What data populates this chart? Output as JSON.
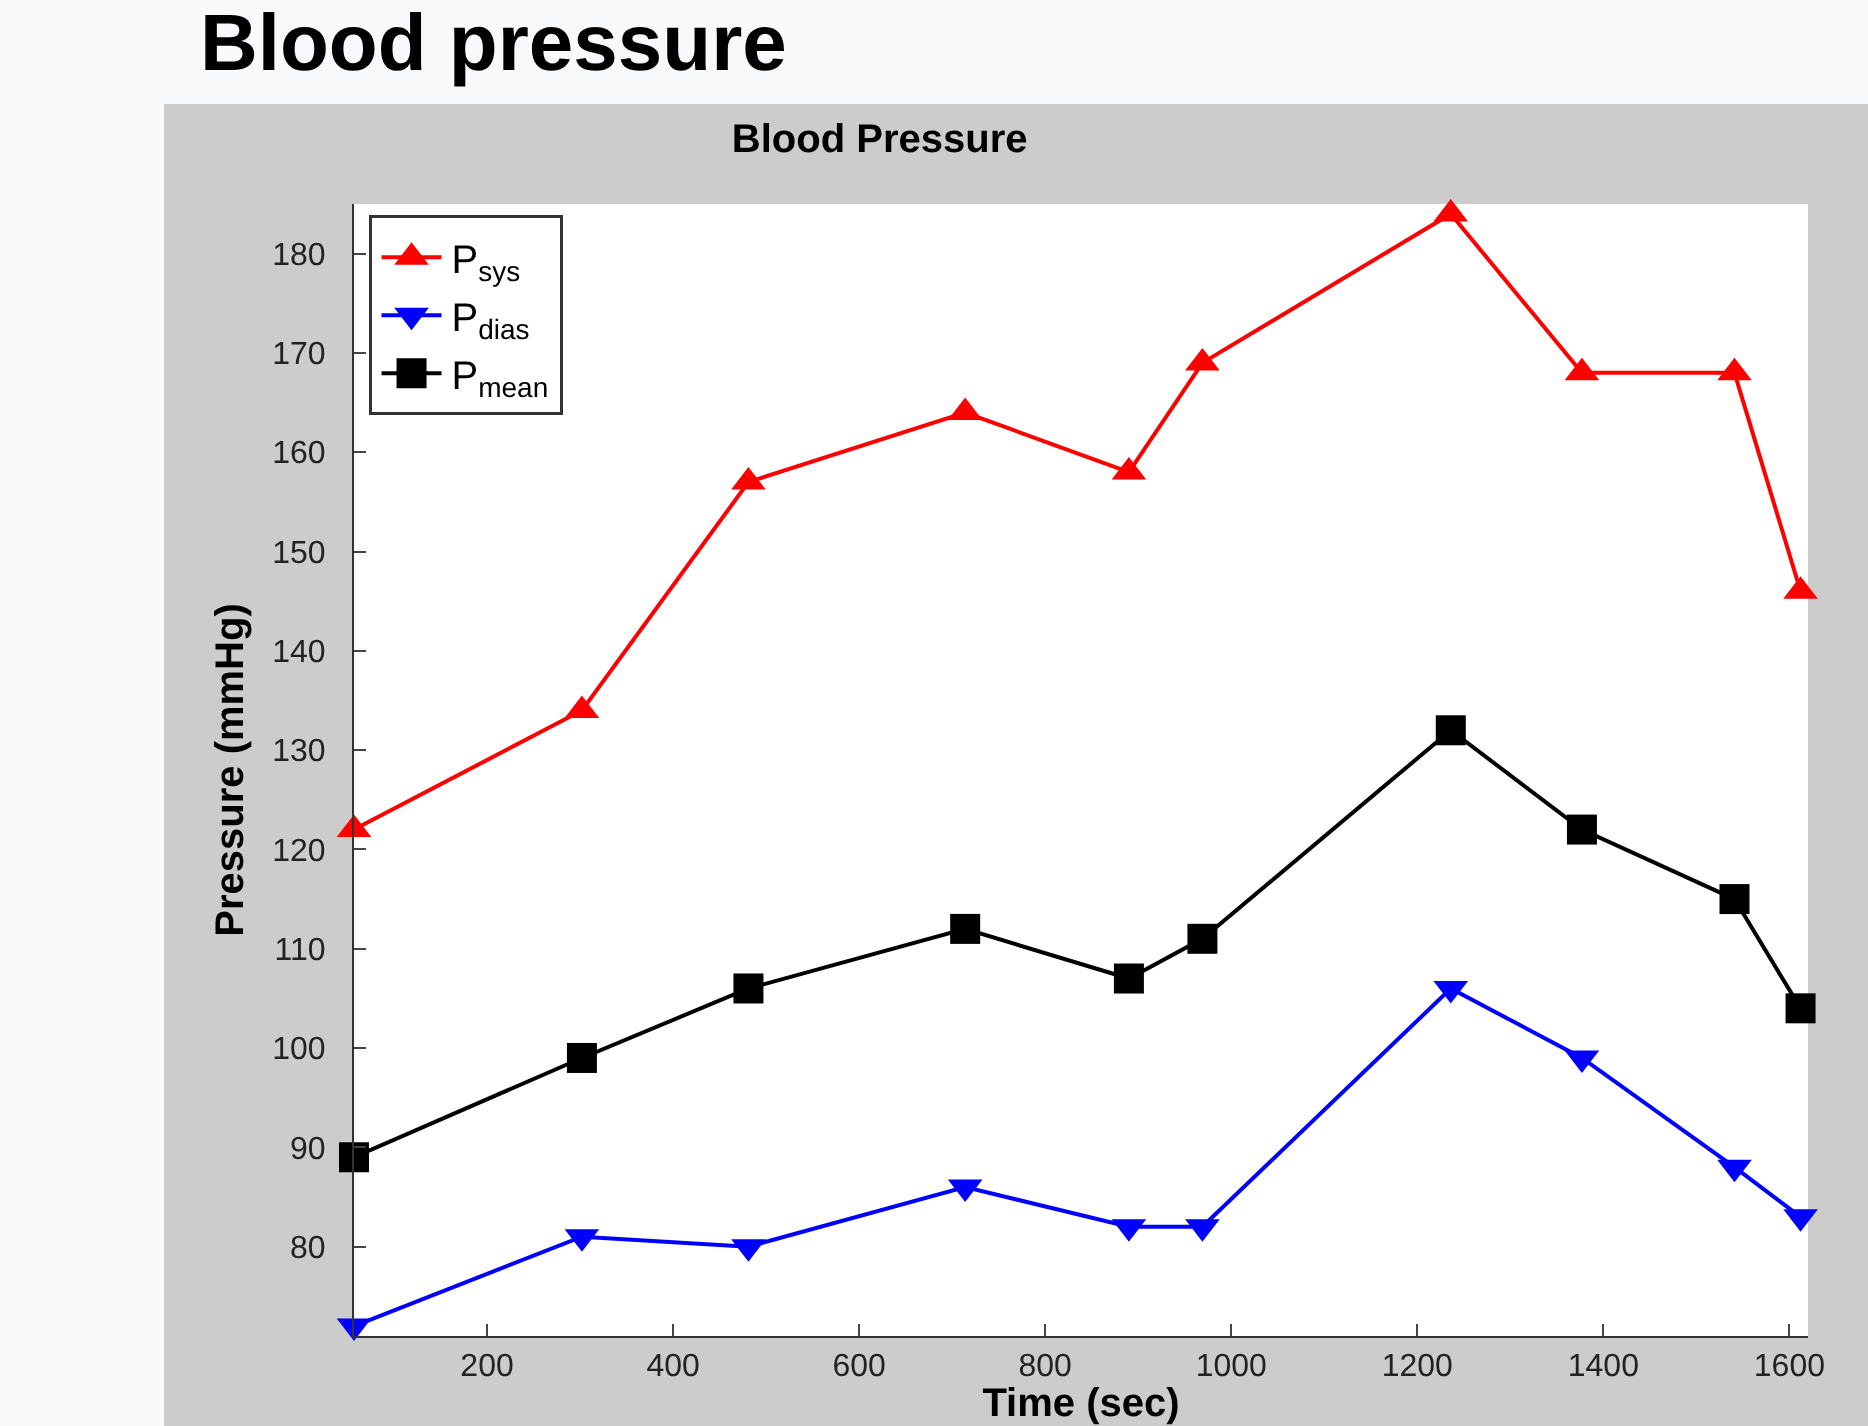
{
  "chart_data": {
    "type": "line",
    "title": "Blood Pressure",
    "xlabel": "Time (sec)",
    "ylabel": "Pressure (mmHg)",
    "annotations": [
      "Blood pressure"
    ],
    "x": [
      57,
      302,
      481,
      714,
      890,
      969,
      1236,
      1377,
      1541,
      1612
    ],
    "xlim": [
      57,
      1620
    ],
    "xticks": [
      200,
      400,
      600,
      800,
      1000,
      1200,
      1400,
      1600
    ],
    "ylim": [
      71,
      185
    ],
    "yticks": [
      80,
      90,
      100,
      110,
      120,
      130,
      140,
      150,
      160,
      170,
      180
    ],
    "grid": false,
    "legend": "top left",
    "line_style": "solid",
    "series": [
      {
        "name": "P$_{sys}$",
        "color": "#ff0000",
        "marker": "triangle",
        "values": [
          122,
          134,
          157,
          164,
          158,
          169,
          184,
          168,
          168,
          146
        ]
      },
      {
        "name": "P$_{dias}$",
        "color": "#0000ff",
        "marker": "triangle-down",
        "values": [
          72,
          81,
          80,
          86,
          82,
          82,
          106,
          99,
          88,
          83
        ]
      },
      {
        "name": "P$_{mean}$",
        "color": "#000000",
        "marker": "square",
        "values": [
          89,
          99,
          106,
          112,
          107,
          111,
          132,
          122,
          115,
          104
        ]
      }
    ]
  }
}
